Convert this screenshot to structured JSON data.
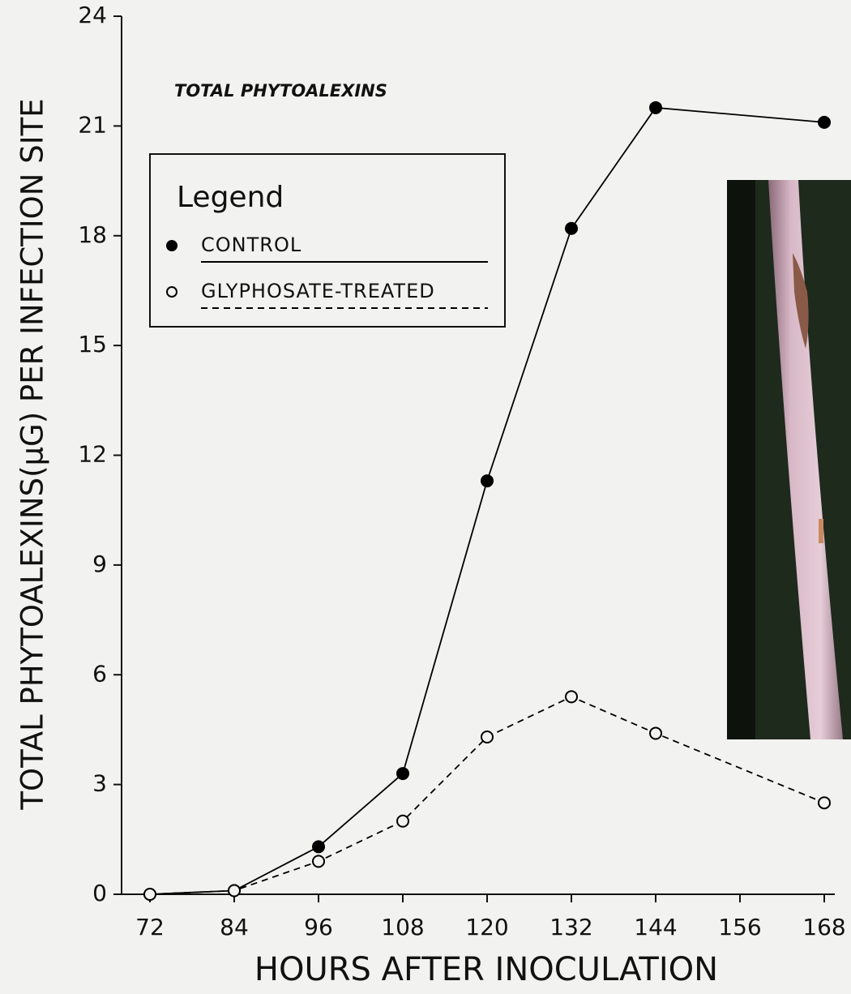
{
  "chart_data": {
    "type": "line",
    "title": "TOTAL PHYTOALEXINS",
    "x_label": "HOURS AFTER INOCULATION",
    "y_label": "TOTAL PHYTOALEXINS(μG) PER INFECTION SITE",
    "legend_title": "Legend",
    "x": [
      72,
      84,
      96,
      108,
      120,
      132,
      144,
      168
    ],
    "series": [
      {
        "name": "CONTROL",
        "color": "#000000",
        "line_style": "solid",
        "marker": "filled",
        "values": [
          0,
          0.1,
          1.3,
          3.3,
          11.3,
          18.2,
          21.5,
          21.1
        ]
      },
      {
        "name": "GLYPHOSATE-TREATED",
        "color": "#000000",
        "line_style": "dashed",
        "marker": "open",
        "values": [
          0,
          0.1,
          0.9,
          2.0,
          4.3,
          5.4,
          4.4,
          2.5
        ]
      }
    ],
    "xlim": [
      72,
      168
    ],
    "xticks": [
      72,
      84,
      96,
      108,
      120,
      132,
      144,
      156,
      168
    ],
    "ylim": [
      0,
      24
    ],
    "yticks": [
      0,
      3,
      6,
      9,
      12,
      15,
      18,
      21,
      24
    ],
    "legend": "upper left"
  }
}
